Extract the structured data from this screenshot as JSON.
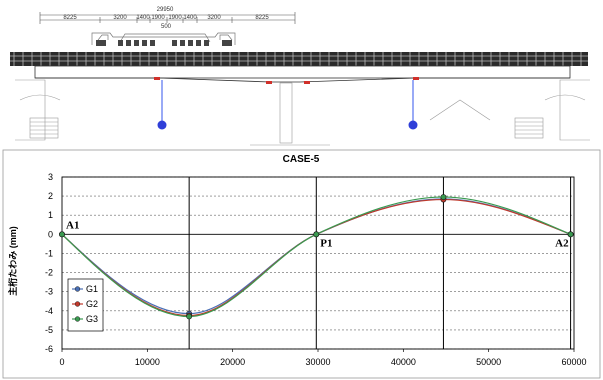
{
  "drawing": {
    "overall_dim": "29950",
    "dims": [
      "8225",
      "3200",
      "1400",
      "1900",
      "1900",
      "1400",
      "3200",
      "8225"
    ],
    "center_dim": "500"
  },
  "chart_data": {
    "type": "line",
    "title": "CASE-5",
    "xlabel": "",
    "ylabel": "主桁たわみ (mm)",
    "xlim": [
      0,
      60000
    ],
    "ylim": [
      -6,
      3
    ],
    "xticks": [
      0,
      10000,
      20000,
      30000,
      40000,
      50000,
      60000
    ],
    "yticks": [
      -6,
      -5,
      -4,
      -3,
      -2,
      -1,
      0,
      1,
      2,
      3
    ],
    "grid": "horizontal-dashed",
    "legend": "bottom-left",
    "supports": [
      {
        "label": "A1",
        "x": 0
      },
      {
        "label": "P1",
        "x": 29800
      },
      {
        "label": "A2",
        "x": 59600
      }
    ],
    "vlines": [
      14900,
      29800,
      44700,
      59600
    ],
    "series": [
      {
        "name": "G1",
        "color": "#4a6fb5",
        "x": [
          0,
          14900,
          29800,
          44700,
          59600
        ],
        "y": [
          0,
          -4.15,
          0,
          1.85,
          0
        ]
      },
      {
        "name": "G2",
        "color": "#c0392b",
        "x": [
          0,
          14900,
          29800,
          44700,
          59600
        ],
        "y": [
          0,
          -4.25,
          0,
          1.82,
          0
        ]
      },
      {
        "name": "G3",
        "color": "#3a9a50",
        "x": [
          0,
          14900,
          29800,
          44700,
          59600
        ],
        "y": [
          0,
          -4.3,
          0,
          1.95,
          0
        ]
      }
    ]
  }
}
